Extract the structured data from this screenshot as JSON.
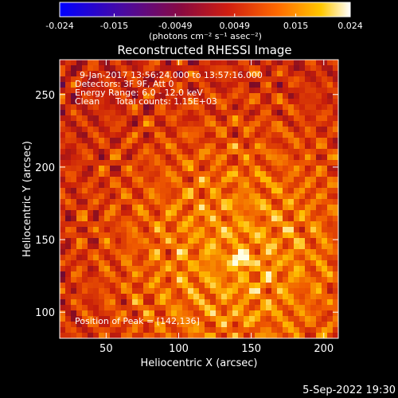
{
  "colorbar": {
    "tick_labels": [
      "-0.024",
      "-0.015",
      "-0.0049",
      "0.0049",
      "0.015",
      "0.024"
    ],
    "min": -0.024,
    "max": 0.024,
    "unit_label": "(photons cm⁻² s⁻¹ asec⁻²)",
    "colors": [
      "#0000ff",
      "#5a0a8a",
      "#8a0a3a",
      "#d01e10",
      "#ff6a00",
      "#ffc800",
      "#ffffff"
    ]
  },
  "chart_data": {
    "type": "heatmap",
    "title": "Reconstructed RHESSI Image",
    "xlabel": "Heliocentric X (arcsec)",
    "ylabel": "Heliocentric Y (arcsec)",
    "xlim": [
      18,
      210
    ],
    "ylim": [
      82,
      274
    ],
    "x_ticks": [
      50,
      100,
      150,
      200
    ],
    "y_ticks": [
      100,
      150,
      200,
      250
    ],
    "x_tick_labels": [
      "50",
      "100",
      "150",
      "200"
    ],
    "y_tick_labels": [
      "100",
      "150",
      "200",
      "250"
    ],
    "peak": [
      142,
      136
    ],
    "annotations": {
      "time_range": "9-Jan-2017 13:56:24.000 to 13:57:16.000",
      "detectors": "Detectors: 3F 9F, Att 0",
      "energy_range": "Energy Range: 6.0 - 12.0 keV",
      "method": "Clean",
      "total_counts": "Total counts: 1.15E+03",
      "peak_position": "Position of Peak = [142,136]"
    }
  },
  "footer": {
    "date": "5-Sep-2022 19:30"
  }
}
